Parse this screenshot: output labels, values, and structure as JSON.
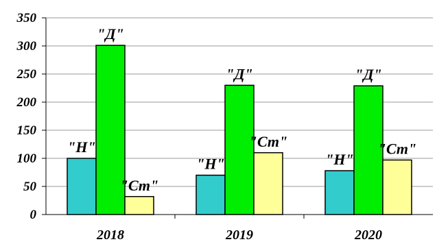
{
  "chart_data": {
    "type": "bar",
    "categories": [
      "2018",
      "2019",
      "2020"
    ],
    "series": [
      {
        "label": "\"Н\"",
        "color": "#33cccc",
        "values": [
          100,
          70,
          78
        ]
      },
      {
        "label": "\"Д\"",
        "color": "#00ee00",
        "values": [
          301,
          230,
          229
        ]
      },
      {
        "label": "\"Ст\"",
        "color": "#ffff99",
        "values": [
          32,
          110,
          97
        ]
      }
    ],
    "ylim": [
      0,
      350
    ],
    "yticks": [
      "0",
      "50",
      "100",
      "150",
      "200",
      "250",
      "300",
      "350"
    ],
    "grid": true,
    "title": "",
    "xlabel": "",
    "ylabel": ""
  }
}
